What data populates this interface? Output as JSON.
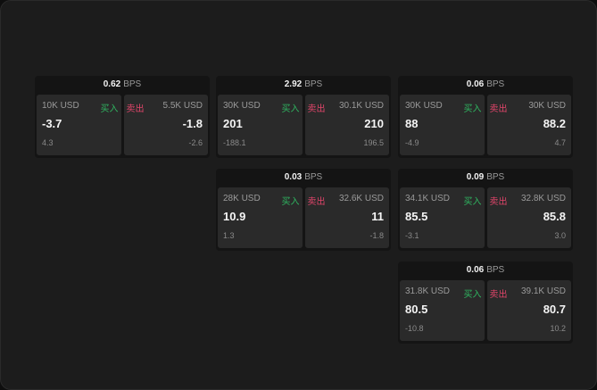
{
  "unit": "BPS",
  "buy_label": "买入",
  "sell_label": "卖出",
  "colors": {
    "buy": "#2fb560",
    "sell": "#e0456a"
  },
  "cards": [
    {
      "spread": "0.62",
      "buy": {
        "qty": "10K USD",
        "price": "-3.7",
        "change": "4.3"
      },
      "sell": {
        "qty": "5.5K USD",
        "price": "-1.8",
        "change": "-2.6"
      }
    },
    {
      "spread": "2.92",
      "buy": {
        "qty": "30K USD",
        "price": "201",
        "change": "-188.1"
      },
      "sell": {
        "qty": "30.1K USD",
        "price": "210",
        "change": "196.5"
      }
    },
    {
      "spread": "0.06",
      "buy": {
        "qty": "30K USD",
        "price": "88",
        "change": "-4.9"
      },
      "sell": {
        "qty": "30K USD",
        "price": "88.2",
        "change": "4.7"
      }
    },
    {
      "spread": "0.03",
      "buy": {
        "qty": "28K USD",
        "price": "10.9",
        "change": "1.3"
      },
      "sell": {
        "qty": "32.6K USD",
        "price": "11",
        "change": "-1.8"
      }
    },
    {
      "spread": "0.09",
      "buy": {
        "qty": "34.1K USD",
        "price": "85.5",
        "change": "-3.1"
      },
      "sell": {
        "qty": "32.8K USD",
        "price": "85.8",
        "change": "3.0"
      }
    },
    {
      "spread": "0.06",
      "buy": {
        "qty": "31.8K USD",
        "price": "80.5",
        "change": "-10.8"
      },
      "sell": {
        "qty": "39.1K USD",
        "price": "80.7",
        "change": "10.2"
      }
    }
  ]
}
